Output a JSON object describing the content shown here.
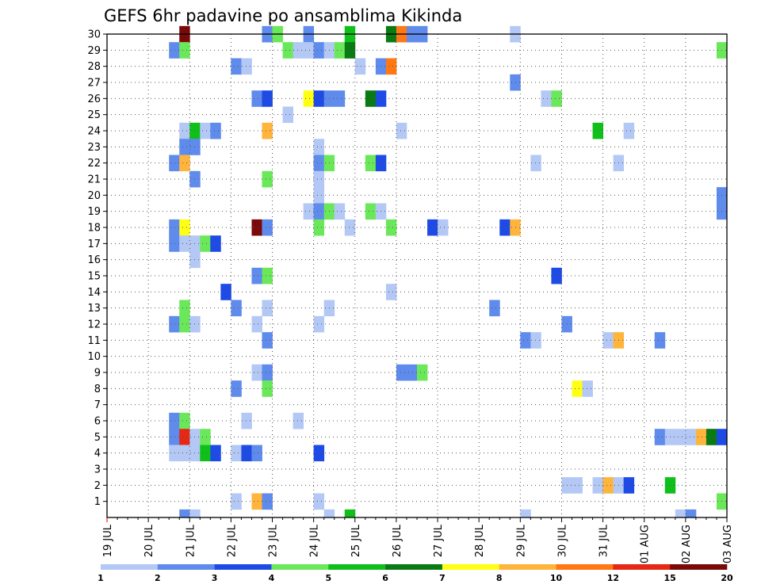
{
  "chart_data": {
    "type": "heatmap",
    "title": "GEFS 6hr padavine po ansamblima Kikinda",
    "y_tick_labels": [
      "1",
      "2",
      "3",
      "4",
      "5",
      "6",
      "7",
      "8",
      "9",
      "10",
      "11",
      "12",
      "13",
      "14",
      "15",
      "16",
      "17",
      "18",
      "19",
      "20",
      "21",
      "22",
      "23",
      "24",
      "25",
      "26",
      "27",
      "28",
      "29",
      "30"
    ],
    "x_tick_labels": [
      "19 JUL",
      "20 JUL",
      "21 JUL",
      "22 JUL",
      "23 JUL",
      "24 JUL",
      "25 JUL",
      "26 JUL",
      "27 JUL",
      "28 JUL",
      "29 JUL",
      "30 JUL",
      "31 JUL",
      "01 AUG",
      "02 AUG",
      "03 AUG"
    ],
    "colorbar": {
      "labels": [
        "1",
        "2",
        "3",
        "4",
        "5",
        "6",
        "7",
        "8",
        "10",
        "12",
        "15",
        "20"
      ],
      "colors": [
        "#b4c8f5",
        "#5f8bec",
        "#1e4be6",
        "#6ae85a",
        "#10c01a",
        "#0a7a14",
        "#ffff14",
        "#ffb43c",
        "#ff7814",
        "#e62814",
        "#7a0a0a"
      ]
    },
    "grid": true,
    "cells": [
      [
        30,
        7,
        10
      ],
      [
        30,
        15,
        1
      ],
      [
        30,
        16,
        3
      ],
      [
        30,
        19,
        1
      ],
      [
        30,
        23,
        4
      ],
      [
        30,
        27,
        5
      ],
      [
        30,
        28,
        8
      ],
      [
        30,
        29,
        1
      ],
      [
        30,
        30,
        1
      ],
      [
        30,
        39,
        0
      ],
      [
        29,
        6,
        1
      ],
      [
        29,
        7,
        3
      ],
      [
        29,
        17,
        3
      ],
      [
        29,
        18,
        0
      ],
      [
        29,
        19,
        0
      ],
      [
        29,
        20,
        1
      ],
      [
        29,
        21,
        0
      ],
      [
        29,
        22,
        3
      ],
      [
        29,
        23,
        5
      ],
      [
        29,
        59,
        3
      ],
      [
        28,
        12,
        1
      ],
      [
        28,
        13,
        0
      ],
      [
        28,
        24,
        0
      ],
      [
        28,
        26,
        1
      ],
      [
        28,
        27,
        8
      ],
      [
        27,
        39,
        1
      ],
      [
        26,
        14,
        1
      ],
      [
        26,
        15,
        2
      ],
      [
        26,
        19,
        6
      ],
      [
        26,
        20,
        2
      ],
      [
        26,
        21,
        1
      ],
      [
        26,
        22,
        1
      ],
      [
        26,
        25,
        5
      ],
      [
        26,
        26,
        2
      ],
      [
        26,
        42,
        0
      ],
      [
        26,
        43,
        3
      ],
      [
        25,
        17,
        0
      ],
      [
        24,
        7,
        0
      ],
      [
        24,
        8,
        4
      ],
      [
        24,
        9,
        0
      ],
      [
        24,
        10,
        1
      ],
      [
        24,
        15,
        7
      ],
      [
        24,
        28,
        0
      ],
      [
        24,
        47,
        4
      ],
      [
        24,
        50,
        0
      ],
      [
        23,
        7,
        1
      ],
      [
        23,
        8,
        1
      ],
      [
        23,
        20,
        0
      ],
      [
        22,
        6,
        1
      ],
      [
        22,
        7,
        7
      ],
      [
        22,
        20,
        1
      ],
      [
        22,
        21,
        3
      ],
      [
        22,
        25,
        3
      ],
      [
        22,
        26,
        2
      ],
      [
        22,
        41,
        0
      ],
      [
        22,
        49,
        0
      ],
      [
        21,
        8,
        1
      ],
      [
        21,
        15,
        3
      ],
      [
        21,
        20,
        0
      ],
      [
        20,
        20,
        0
      ],
      [
        20,
        59,
        1
      ],
      [
        19,
        19,
        0
      ],
      [
        19,
        20,
        1
      ],
      [
        19,
        21,
        3
      ],
      [
        19,
        22,
        0
      ],
      [
        19,
        25,
        3
      ],
      [
        19,
        26,
        0
      ],
      [
        19,
        59,
        1
      ],
      [
        18,
        6,
        1
      ],
      [
        18,
        7,
        6
      ],
      [
        18,
        14,
        10
      ],
      [
        18,
        15,
        1
      ],
      [
        18,
        20,
        3
      ],
      [
        18,
        23,
        0
      ],
      [
        18,
        27,
        3
      ],
      [
        18,
        31,
        2
      ],
      [
        18,
        32,
        0
      ],
      [
        18,
        38,
        2
      ],
      [
        18,
        39,
        7
      ],
      [
        17,
        6,
        1
      ],
      [
        17,
        7,
        0
      ],
      [
        17,
        8,
        0
      ],
      [
        17,
        9,
        3
      ],
      [
        17,
        10,
        2
      ],
      [
        16,
        8,
        0
      ],
      [
        15,
        14,
        1
      ],
      [
        15,
        15,
        3
      ],
      [
        15,
        43,
        2
      ],
      [
        14,
        11,
        2
      ],
      [
        14,
        27,
        0
      ],
      [
        13,
        7,
        3
      ],
      [
        13,
        12,
        1
      ],
      [
        13,
        15,
        0
      ],
      [
        13,
        21,
        0
      ],
      [
        13,
        37,
        1
      ],
      [
        12,
        6,
        1
      ],
      [
        12,
        7,
        3
      ],
      [
        12,
        8,
        0
      ],
      [
        12,
        14,
        0
      ],
      [
        12,
        20,
        0
      ],
      [
        12,
        44,
        1
      ],
      [
        11,
        15,
        1
      ],
      [
        11,
        40,
        1
      ],
      [
        11,
        41,
        0
      ],
      [
        11,
        48,
        0
      ],
      [
        11,
        49,
        7
      ],
      [
        11,
        53,
        1
      ],
      [
        9,
        14,
        0
      ],
      [
        9,
        15,
        1
      ],
      [
        9,
        28,
        1
      ],
      [
        9,
        29,
        1
      ],
      [
        9,
        30,
        3
      ],
      [
        8,
        12,
        1
      ],
      [
        8,
        15,
        3
      ],
      [
        8,
        45,
        6
      ],
      [
        8,
        46,
        0
      ],
      [
        6,
        6,
        1
      ],
      [
        6,
        7,
        3
      ],
      [
        6,
        13,
        0
      ],
      [
        6,
        18,
        0
      ],
      [
        5,
        6,
        1
      ],
      [
        5,
        7,
        9
      ],
      [
        5,
        8,
        0
      ],
      [
        5,
        9,
        3
      ],
      [
        5,
        53,
        1
      ],
      [
        5,
        54,
        0
      ],
      [
        5,
        55,
        0
      ],
      [
        5,
        56,
        0
      ],
      [
        5,
        57,
        7
      ],
      [
        5,
        58,
        5
      ],
      [
        5,
        59,
        2
      ],
      [
        4,
        6,
        0
      ],
      [
        4,
        7,
        0
      ],
      [
        4,
        8,
        0
      ],
      [
        4,
        9,
        4
      ],
      [
        4,
        10,
        2
      ],
      [
        4,
        12,
        0
      ],
      [
        4,
        13,
        2
      ],
      [
        4,
        14,
        1
      ],
      [
        4,
        20,
        2
      ],
      [
        2,
        44,
        0
      ],
      [
        2,
        45,
        0
      ],
      [
        2,
        47,
        0
      ],
      [
        2,
        48,
        7
      ],
      [
        2,
        49,
        0
      ],
      [
        2,
        50,
        2
      ],
      [
        2,
        54,
        4
      ],
      [
        1,
        12,
        0
      ],
      [
        1,
        14,
        7
      ],
      [
        1,
        15,
        1
      ],
      [
        1,
        20,
        0
      ],
      [
        1,
        59,
        3
      ]
    ],
    "extra_partial": [
      [
        0,
        7,
        1
      ],
      [
        0,
        8,
        0
      ],
      [
        0,
        21,
        0
      ],
      [
        0,
        23,
        4
      ],
      [
        0,
        40,
        0
      ],
      [
        0,
        55,
        0
      ],
      [
        0,
        56,
        1
      ]
    ]
  }
}
